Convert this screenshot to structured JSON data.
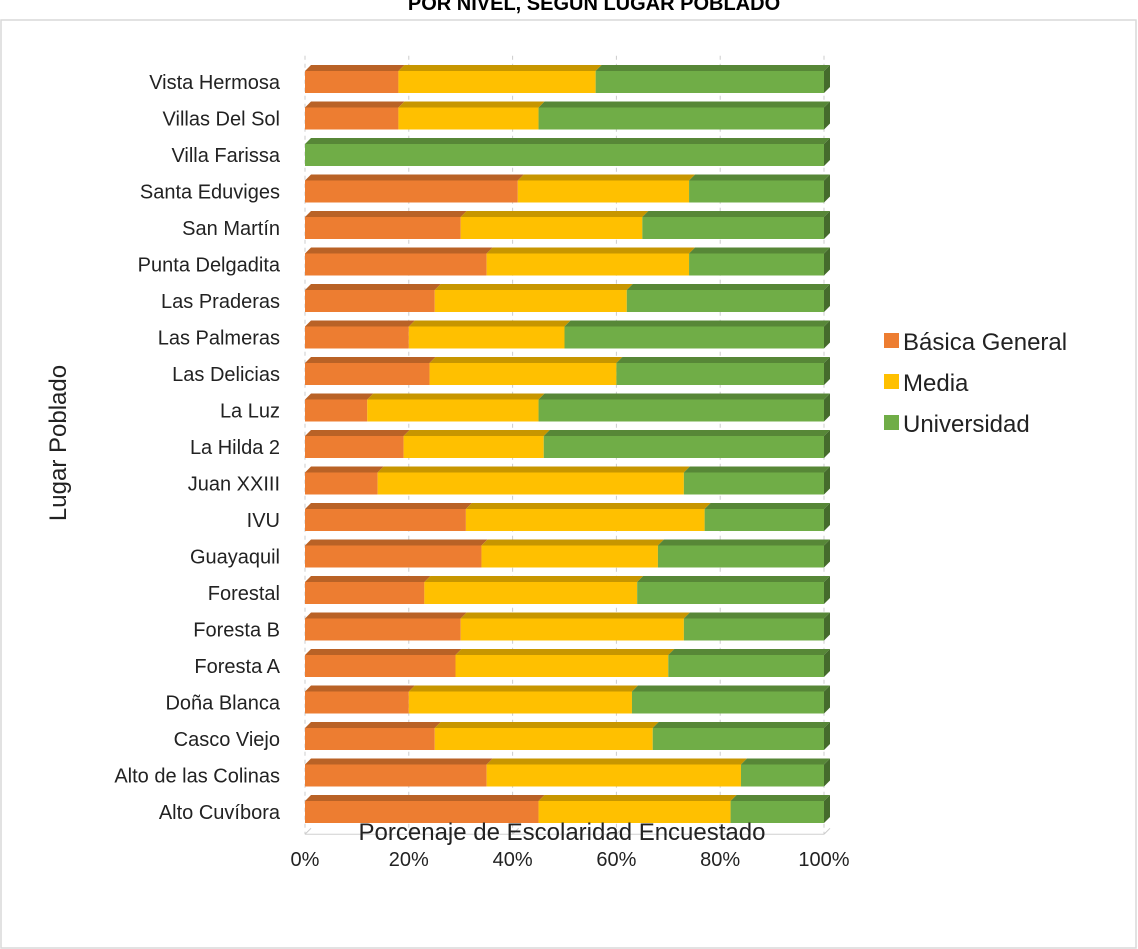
{
  "chart_data": {
    "type": "bar",
    "orientation": "horizontal",
    "stacked": "percent",
    "title": "POR NIVEL, SEGÚN LUGAR POBLADO",
    "xlabel": "Porcenaje de Escolaridad Encuestado",
    "ylabel": "Lugar Poblado",
    "xlim": [
      0,
      100
    ],
    "x_ticks": [
      "0%",
      "20%",
      "40%",
      "60%",
      "80%",
      "100%"
    ],
    "grid": "vertical, dashed",
    "legend_position": "right",
    "categories": [
      "Vista Hermosa",
      "Villas Del Sol",
      "Villa Farissa",
      "Santa Eduviges",
      "San  Martín",
      "Punta Delgadita",
      "Las Praderas",
      "Las Palmeras",
      "Las Delicias",
      "La Luz",
      "La Hilda 2",
      "Juan XXIII",
      "IVU",
      "Guayaquil",
      "Forestal",
      "Foresta B",
      "Foresta A",
      "Doña Blanca",
      "Casco Viejo",
      "Alto de las Colinas",
      "Alto Cuvíbora"
    ],
    "series": [
      {
        "name": "Básica General",
        "color": "#ED7D31",
        "values": [
          18,
          18,
          0,
          41,
          30,
          35,
          25,
          20,
          24,
          12,
          19,
          14,
          31,
          34,
          23,
          30,
          29,
          20,
          25,
          35,
          45
        ]
      },
      {
        "name": "Media",
        "color": "#FFC000",
        "values": [
          38,
          27,
          0,
          33,
          35,
          39,
          37,
          30,
          36,
          33,
          27,
          59,
          46,
          34,
          41,
          43,
          41,
          43,
          42,
          49,
          37
        ]
      },
      {
        "name": "Universidad",
        "color": "#70AD47",
        "values": [
          44,
          55,
          100,
          26,
          35,
          26,
          38,
          50,
          40,
          55,
          54,
          27,
          23,
          32,
          36,
          27,
          30,
          37,
          33,
          16,
          18
        ]
      }
    ]
  }
}
